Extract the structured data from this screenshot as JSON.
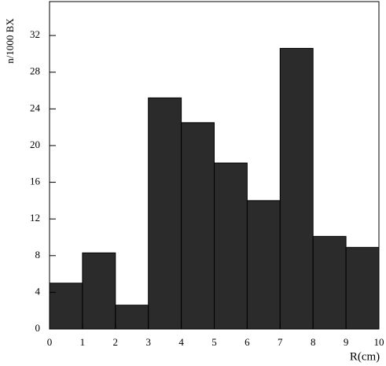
{
  "chart_data": {
    "type": "histogram",
    "x_label": "R(cm)",
    "y_label": "n/1000 BX",
    "bins": [
      0,
      1,
      2,
      3,
      4,
      5,
      6,
      7,
      8,
      9,
      10
    ],
    "values": [
      5.0,
      8.3,
      2.6,
      25.2,
      22.5,
      18.1,
      14.0,
      30.6,
      10.1,
      8.9
    ],
    "color": "#2b2b2b",
    "xlim": [
      0,
      10
    ],
    "xticks": [
      0,
      1,
      2,
      3,
      4,
      5,
      6,
      7,
      8,
      9,
      10
    ],
    "ylim": [
      0,
      35.7
    ],
    "yticks": [
      0,
      4,
      8,
      12,
      16,
      20,
      24,
      28,
      32
    ]
  }
}
